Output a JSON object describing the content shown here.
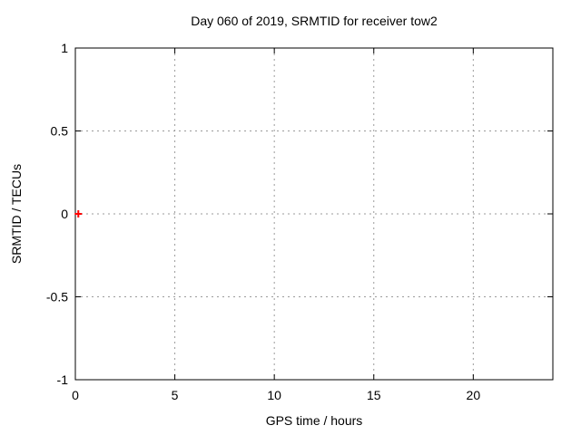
{
  "chart_data": {
    "type": "scatter",
    "title": "Day 060 of 2019, SRMTID for receiver tow2",
    "xlabel": "GPS time / hours",
    "ylabel": "SRMTID / TECUs",
    "xlim": [
      0,
      24
    ],
    "ylim": [
      -1,
      1
    ],
    "xticks": {
      "values": [
        0,
        5,
        10,
        15,
        20
      ],
      "labels": [
        "0",
        "5",
        "10",
        "15",
        "20"
      ]
    },
    "yticks": {
      "values": [
        -1,
        -0.5,
        0,
        0.5,
        1
      ],
      "labels": [
        "-1",
        "-0.5",
        "0",
        "0.5",
        "1"
      ]
    },
    "grid": true,
    "legend": "none",
    "series": [
      {
        "name": "SRMTID",
        "marker": "plus",
        "color": "#ff0000",
        "points": [
          {
            "x": 0.15,
            "y": 0
          }
        ]
      }
    ],
    "colors": {
      "background": "#ffffff",
      "axis": "#000000",
      "grid": "#9b9b9b",
      "text": "#000000"
    }
  }
}
